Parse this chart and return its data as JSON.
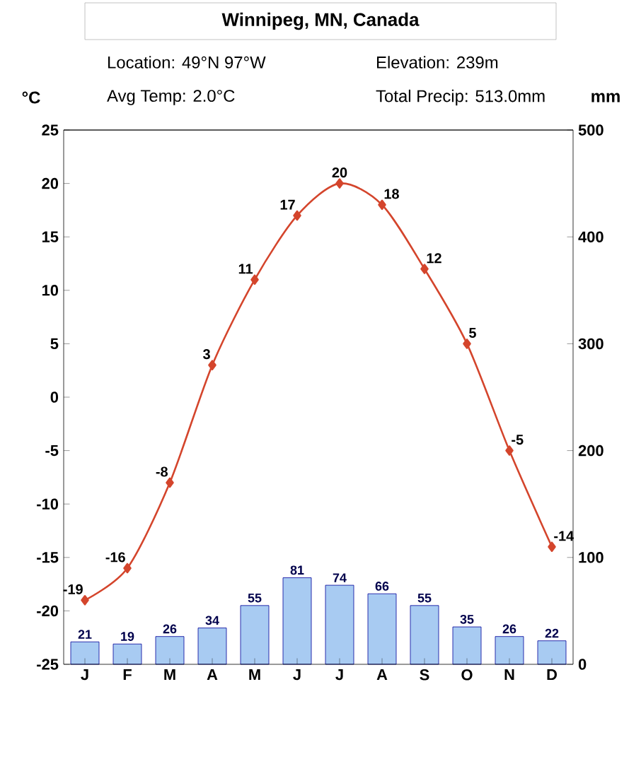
{
  "chart_data": {
    "type": "line",
    "title": "Winnipeg, MN, Canada",
    "annotations": [
      "Location: 49°N 97°W",
      "Elevation: 239m",
      "Avg Temp: 2.0°C",
      "Total Precip: 513.0mm"
    ],
    "ylabel": "°C",
    "y2label": "mm",
    "categories": [
      "J",
      "F",
      "M",
      "A",
      "M",
      "J",
      "J",
      "A",
      "S",
      "O",
      "N",
      "D"
    ],
    "series": [
      {
        "color": "#d4452c",
        "values": [
          -19,
          -16,
          -8,
          3,
          11,
          17,
          20,
          18,
          12,
          5,
          -5,
          -14
        ]
      },
      {
        "type": "bar",
        "axis": "y2",
        "color": "#a8cbf2",
        "values": [
          21,
          19,
          26,
          34,
          55,
          81,
          74,
          66,
          55,
          35,
          26,
          22
        ]
      }
    ],
    "ylim": [
      -25,
      25
    ],
    "yticks": [
      -25,
      -20,
      -15,
      -10,
      -5,
      0,
      5,
      10,
      15,
      20,
      25
    ],
    "y2lim": [
      0,
      500
    ],
    "y2ticks": [
      0,
      100,
      200,
      300,
      400,
      500
    ],
    "data_labels": true,
    "marker": "diamond",
    "line_style": "solid",
    "grid": false
  }
}
